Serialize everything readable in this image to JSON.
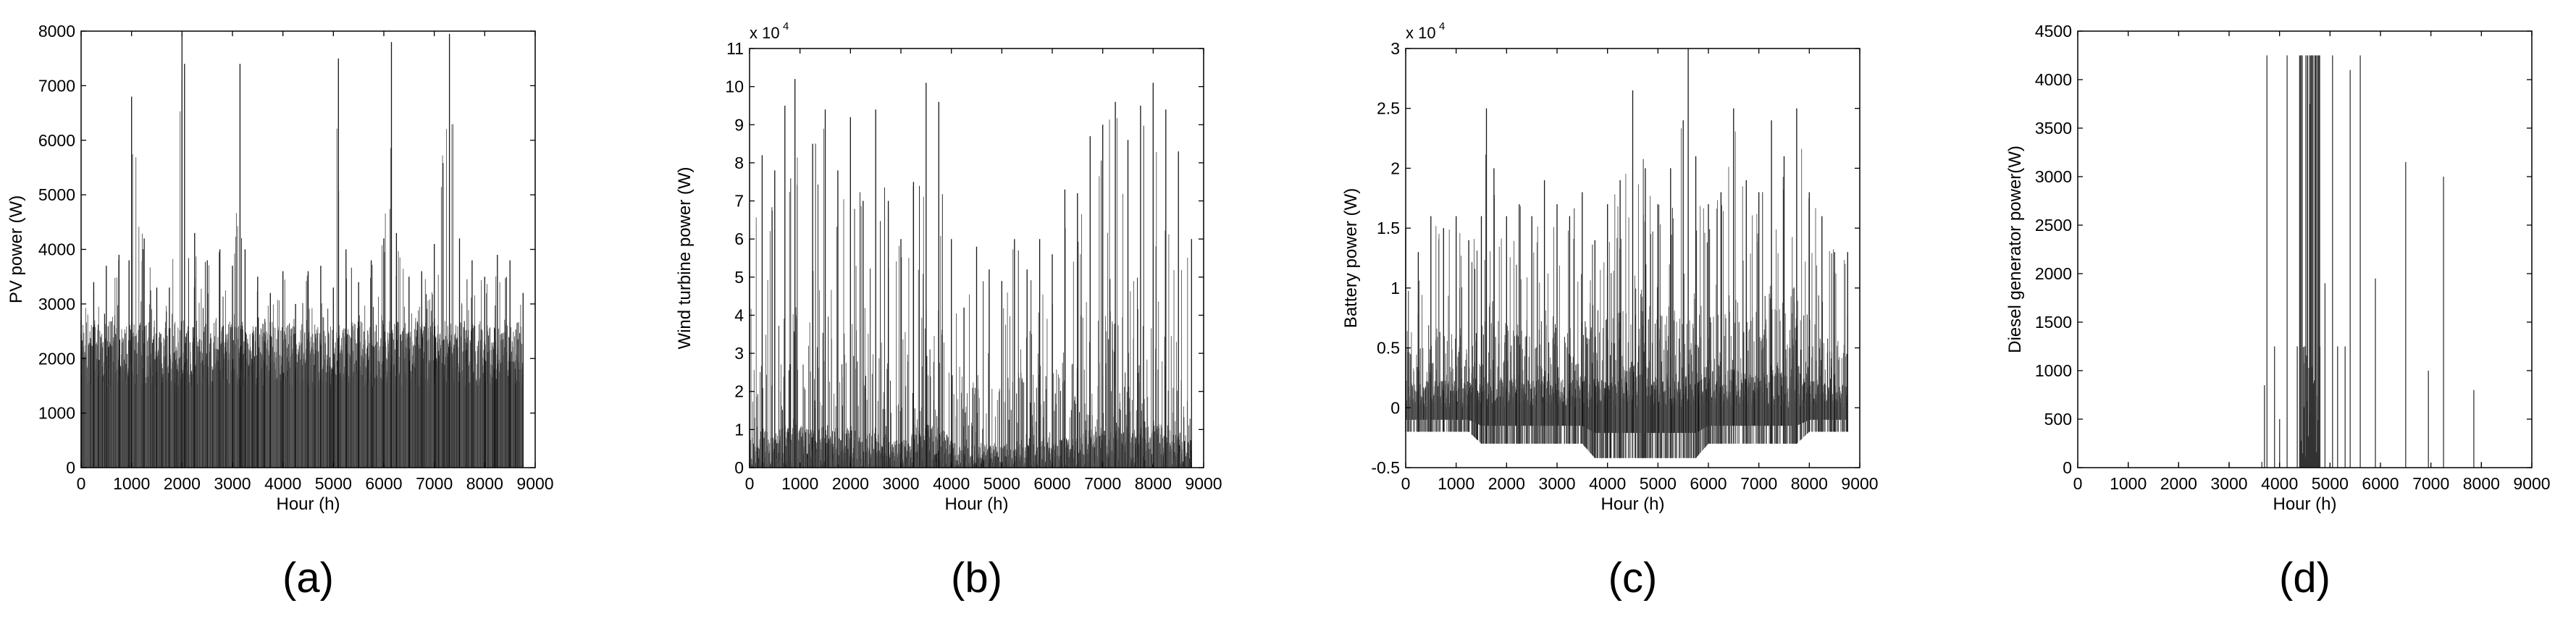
{
  "chart_data": [
    {
      "type": "line",
      "panel_label": "(a)",
      "xlabel": "Hour (h)",
      "ylabel": "PV power (W)",
      "xlim": [
        0,
        9000
      ],
      "ylim": [
        0,
        8000
      ],
      "x_ticks": [
        0,
        1000,
        2000,
        3000,
        4000,
        5000,
        6000,
        7000,
        8000,
        9000
      ],
      "y_ticks": [
        0,
        1000,
        2000,
        3000,
        4000,
        5000,
        6000,
        7000,
        8000
      ],
      "y_tick_labels": [
        "0",
        "1000",
        "2000",
        "3000",
        "4000",
        "5000",
        "6000",
        "7000",
        "8000"
      ],
      "exponent_label": "",
      "x_end": 8760,
      "series": [
        {
          "x": [
            0,
            250,
            500,
            750,
            950,
            1000,
            1250,
            1500,
            1750,
            2000,
            2050,
            2250,
            2500,
            2750,
            3000,
            3150,
            3250,
            3500,
            3750,
            4000,
            4250,
            4500,
            4750,
            5000,
            5100,
            5250,
            5500,
            5750,
            6000,
            6150,
            6250,
            6500,
            6750,
            7000,
            7300,
            7500,
            7750,
            8000,
            8250,
            8500,
            8760
          ],
          "values": [
            2700,
            3400,
            3700,
            3900,
            3800,
            6800,
            4200,
            3300,
            3300,
            7950,
            7400,
            4300,
            3800,
            4000,
            3700,
            7400,
            4000,
            3500,
            3200,
            3600,
            3000,
            3600,
            3700,
            3300,
            7500,
            4000,
            3400,
            3800,
            4200,
            7800,
            4300,
            3500,
            3600,
            4100,
            7950,
            4200,
            3800,
            3500,
            3900,
            3800,
            3200
          ],
          "min_values": [
            0,
            0,
            0,
            0,
            0,
            0,
            0,
            0,
            0,
            0,
            0,
            0,
            0,
            0,
            0,
            0,
            0,
            0,
            0,
            0,
            0,
            0,
            0,
            0,
            0,
            0,
            0,
            0,
            0,
            0,
            0,
            0,
            0,
            0,
            0,
            0,
            0,
            0,
            0,
            0,
            0
          ]
        }
      ]
    },
    {
      "type": "line",
      "panel_label": "(b)",
      "xlabel": "Hour (h)",
      "ylabel": "Wind turbine power (W)",
      "xlim": [
        0,
        9000
      ],
      "ylim": [
        0,
        110000
      ],
      "x_ticks": [
        0,
        1000,
        2000,
        3000,
        4000,
        5000,
        6000,
        7000,
        8000,
        9000
      ],
      "y_ticks": [
        0,
        10000,
        20000,
        30000,
        40000,
        50000,
        60000,
        70000,
        80000,
        90000,
        100000,
        110000
      ],
      "y_tick_labels": [
        "0",
        "1",
        "2",
        "3",
        "4",
        "5",
        "6",
        "7",
        "8",
        "9",
        "10",
        "11"
      ],
      "exponent_label": "x 10",
      "exponent_sup": "4",
      "x_end": 8760,
      "series": [
        {
          "x": [
            0,
            250,
            500,
            700,
            900,
            1250,
            1500,
            1750,
            2000,
            2250,
            2500,
            2750,
            3000,
            3250,
            3500,
            3750,
            4000,
            4250,
            4500,
            4750,
            5000,
            5250,
            5500,
            5750,
            6000,
            6250,
            6500,
            6750,
            7000,
            7250,
            7500,
            7750,
            8000,
            8250,
            8500,
            8760
          ],
          "values": [
            60000,
            82000,
            78000,
            95000,
            102000,
            85000,
            94000,
            78000,
            92000,
            70000,
            94000,
            70000,
            60000,
            75000,
            101000,
            96000,
            60000,
            42000,
            58000,
            52000,
            49000,
            60000,
            52000,
            60000,
            56000,
            73000,
            72000,
            87000,
            90000,
            96000,
            86000,
            95000,
            101000,
            94000,
            83000,
            60000
          ],
          "min_values": [
            0,
            0,
            0,
            0,
            0,
            0,
            0,
            0,
            0,
            0,
            0,
            0,
            0,
            0,
            0,
            0,
            0,
            0,
            0,
            0,
            0,
            0,
            0,
            0,
            0,
            0,
            0,
            0,
            0,
            0,
            0,
            0,
            0,
            0,
            0,
            0
          ]
        }
      ]
    },
    {
      "type": "line",
      "panel_label": "(c)",
      "xlabel": "Hour (h)",
      "ylabel": "Battery power (W)",
      "xlim": [
        0,
        9000
      ],
      "ylim": [
        -5000,
        30000
      ],
      "x_ticks": [
        0,
        1000,
        2000,
        3000,
        4000,
        5000,
        6000,
        7000,
        8000,
        9000
      ],
      "y_ticks": [
        -5000,
        0,
        5000,
        10000,
        15000,
        20000,
        25000,
        30000
      ],
      "y_tick_labels": [
        "-0.5",
        "0",
        "0.5",
        "1",
        "1.5",
        "2",
        "2.5",
        "3"
      ],
      "exponent_label": "x 10",
      "exponent_sup": "4",
      "x_end": 8760,
      "series": [
        {
          "x": [
            0,
            250,
            500,
            750,
            1000,
            1250,
            1500,
            1600,
            1750,
            2000,
            2250,
            2500,
            2750,
            3000,
            3250,
            3500,
            3750,
            4000,
            4250,
            4500,
            4750,
            5000,
            5250,
            5500,
            5600,
            5750,
            6000,
            6250,
            6500,
            6750,
            7000,
            7250,
            7500,
            7750,
            8000,
            8250,
            8500,
            8760
          ],
          "values": [
            15000,
            13000,
            16000,
            15000,
            16000,
            14000,
            16000,
            25000,
            20000,
            16000,
            17000,
            16000,
            19000,
            17000,
            16000,
            18000,
            14000,
            17000,
            19000,
            26500,
            20000,
            17000,
            20000,
            24000,
            30000,
            21000,
            17000,
            18000,
            25000,
            19000,
            18000,
            24000,
            21000,
            25000,
            18000,
            16000,
            13000,
            13000
          ],
          "min_values": [
            -2000,
            -2000,
            -2000,
            -2000,
            -2000,
            -2000,
            -3000,
            -3000,
            -3000,
            -3000,
            -3000,
            -3000,
            -3000,
            -3000,
            -3000,
            -3000,
            -4200,
            -4200,
            -4200,
            -4200,
            -4200,
            -4200,
            -4200,
            -4200,
            -4200,
            -4200,
            -3000,
            -3000,
            -3000,
            -3000,
            -3000,
            -3000,
            -3000,
            -3000,
            -2000,
            -2000,
            -2000,
            -2000
          ]
        }
      ]
    },
    {
      "type": "line",
      "panel_label": "(d)",
      "xlabel": "Hour (h)",
      "ylabel": "Diesel generator power(W)",
      "xlim": [
        0,
        9000
      ],
      "ylim": [
        0,
        4500
      ],
      "x_ticks": [
        0,
        1000,
        2000,
        3000,
        4000,
        5000,
        6000,
        7000,
        8000,
        9000
      ],
      "y_ticks": [
        0,
        500,
        1000,
        1500,
        2000,
        2500,
        3000,
        3500,
        4000,
        4500
      ],
      "y_tick_labels": [
        "0",
        "500",
        "1000",
        "1500",
        "2000",
        "2500",
        "3000",
        "3500",
        "4000",
        "4500"
      ],
      "exponent_label": "",
      "x_end": 8760,
      "series": [
        {
          "x": [
            1000,
            2000,
            3000,
            3650,
            3700,
            3750,
            3900,
            4000,
            4150,
            4350,
            4400,
            4500,
            4550,
            4600,
            4650,
            4700,
            4750,
            4800,
            4900,
            5050,
            5150,
            5300,
            5400,
            5600,
            5900,
            6500,
            6950,
            7250,
            7850,
            8000
          ],
          "values": [
            60,
            60,
            60,
            60,
            850,
            4250,
            1250,
            500,
            4250,
            1250,
            4250,
            1250,
            4250,
            3750,
            4250,
            4250,
            4250,
            1250,
            1900,
            4250,
            1250,
            1250,
            4100,
            4250,
            1950,
            3150,
            1000,
            3000,
            800,
            60
          ],
          "min_values": [
            0,
            0,
            0,
            0,
            0,
            0,
            0,
            0,
            0,
            0,
            0,
            0,
            0,
            0,
            0,
            0,
            0,
            0,
            0,
            0,
            0,
            0,
            0,
            0,
            0,
            0,
            0,
            0,
            0,
            0
          ]
        }
      ]
    }
  ]
}
